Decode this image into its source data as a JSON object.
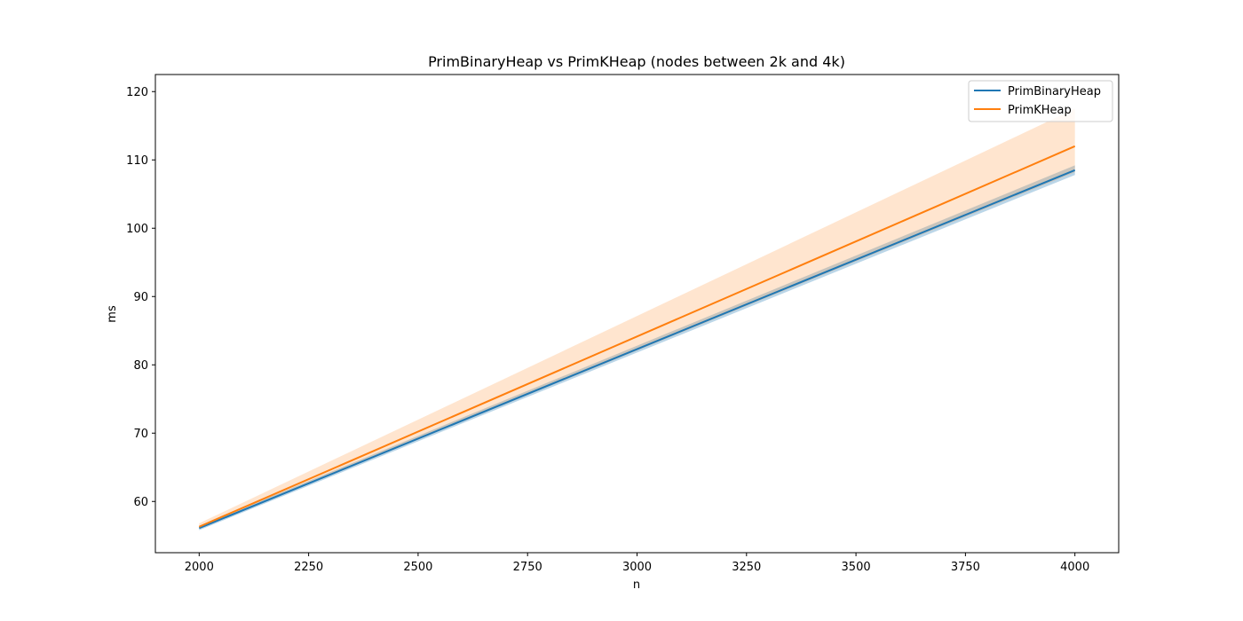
{
  "chart_data": {
    "type": "line",
    "title": "PrimBinaryHeap vs PrimKHeap (nodes between 2k and 4k)",
    "xlabel": "n",
    "ylabel": "ms",
    "xlim": [
      1900,
      4100
    ],
    "ylim": [
      52.5,
      122.5
    ],
    "x_ticks": [
      2000,
      2250,
      2500,
      2750,
      3000,
      3250,
      3500,
      3750,
      4000
    ],
    "y_ticks": [
      60,
      70,
      80,
      90,
      100,
      110,
      120
    ],
    "legend_position": "top-right",
    "grid": false,
    "series": [
      {
        "name": "PrimBinaryHeap",
        "color": "#1f77b4",
        "x": [
          2000,
          4000
        ],
        "values": [
          56.1,
          108.5
        ],
        "band_lower": [
          55.8,
          107.8
        ],
        "band_upper": [
          56.4,
          109.2
        ]
      },
      {
        "name": "PrimKHeap",
        "color": "#ff7f0e",
        "x": [
          2000,
          4000
        ],
        "values": [
          56.3,
          112.0
        ],
        "band_lower": [
          56.0,
          108.2
        ],
        "band_upper": [
          56.8,
          117.5
        ]
      }
    ]
  }
}
